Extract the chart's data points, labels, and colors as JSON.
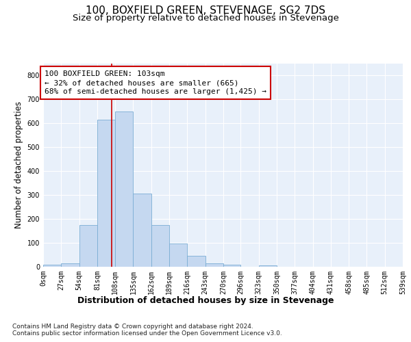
{
  "title": "100, BOXFIELD GREEN, STEVENAGE, SG2 7DS",
  "subtitle": "Size of property relative to detached houses in Stevenage",
  "xlabel": "Distribution of detached houses by size in Stevenage",
  "ylabel": "Number of detached properties",
  "bar_color": "#c5d8f0",
  "bar_edge_color": "#7aadd4",
  "background_color": "#e8f0fa",
  "grid_color": "#ffffff",
  "bin_edges": [
    0,
    27,
    54,
    81,
    108,
    135,
    162,
    189,
    216,
    243,
    270,
    296,
    323,
    350,
    377,
    404,
    431,
    458,
    485,
    512,
    539
  ],
  "bar_heights": [
    8,
    15,
    175,
    615,
    650,
    305,
    175,
    97,
    45,
    13,
    10,
    0,
    5,
    0,
    0,
    0,
    0,
    0,
    0,
    0
  ],
  "property_size": 103,
  "red_line_color": "#cc0000",
  "annotation_line1": "100 BOXFIELD GREEN: 103sqm",
  "annotation_line2": "← 32% of detached houses are smaller (665)",
  "annotation_line3": "68% of semi-detached houses are larger (1,425) →",
  "annotation_box_color": "#ffffff",
  "annotation_box_edge_color": "#cc0000",
  "ylim": [
    0,
    850
  ],
  "yticks": [
    0,
    100,
    200,
    300,
    400,
    500,
    600,
    700,
    800
  ],
  "footer_text": "Contains HM Land Registry data © Crown copyright and database right 2024.\nContains public sector information licensed under the Open Government Licence v3.0.",
  "title_fontsize": 11,
  "subtitle_fontsize": 9.5,
  "xlabel_fontsize": 9,
  "ylabel_fontsize": 8.5,
  "tick_fontsize": 7,
  "annotation_fontsize": 8,
  "footer_fontsize": 6.5
}
